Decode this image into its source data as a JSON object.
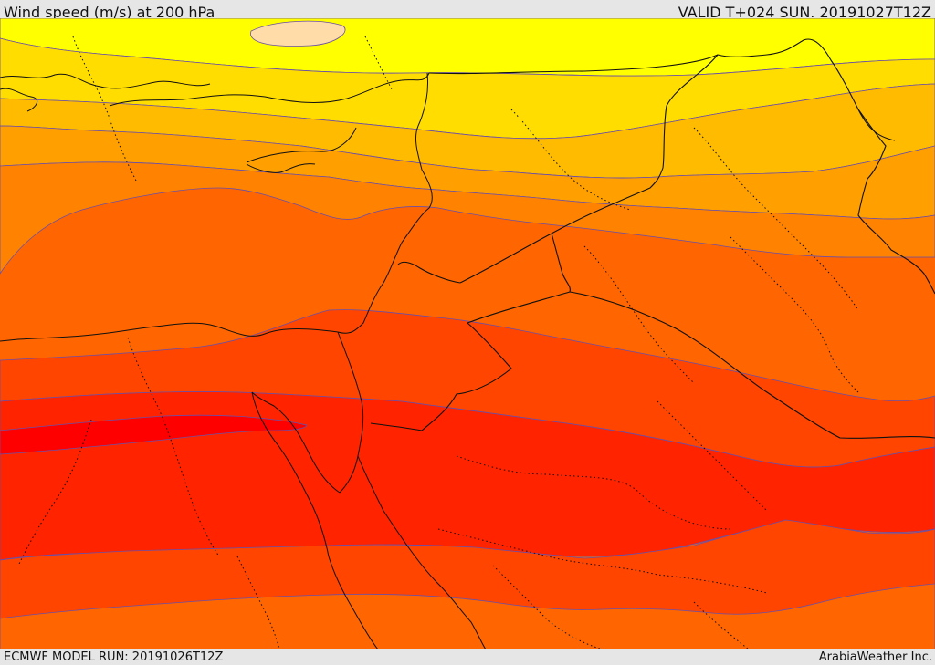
{
  "header": {
    "title": "Wind speed (m/s) at 200 hPa",
    "valid": "VALID T+024 SUN. 20191027T12Z"
  },
  "footer": {
    "model_run": "ECMWF MODEL RUN: 20191026T12Z",
    "credit": "ArabiaWeather Inc."
  },
  "map": {
    "field": "wind speed",
    "level_hpa": 200,
    "region": "Eastern Mediterranean & Middle East",
    "colors": {
      "pale_orange": "#ffdca8",
      "yellow": "#ffff00",
      "gold": "#ffdd00",
      "amber": "#ffbb00",
      "orange_light": "#ff9f00",
      "orange": "#ff8300",
      "orange_dark": "#ff6500",
      "red_orange": "#ff4500",
      "red": "#ff2300",
      "red_max": "#ff0000",
      "contour": "#6a4fa8",
      "border": "#111111"
    }
  }
}
